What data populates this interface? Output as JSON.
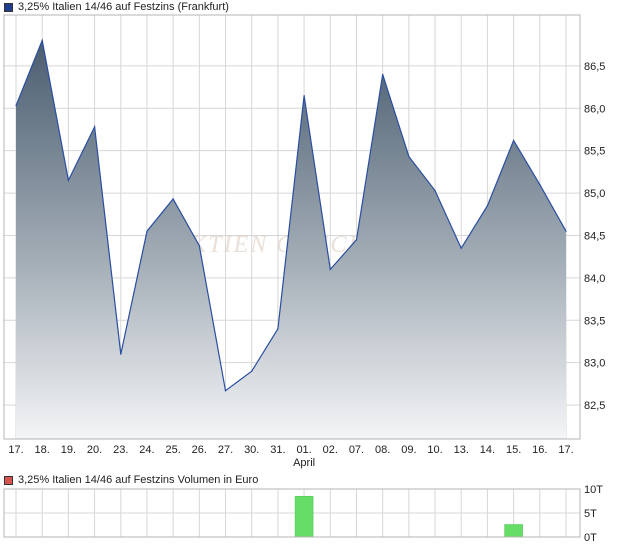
{
  "chart_data": [
    {
      "type": "area",
      "title": "3,25% Italien 14/46 auf Festzins (Frankfurt)",
      "legend_color": "#1f3d8a",
      "watermark": "AKTIEN CHECK",
      "categories": [
        "17.",
        "18.",
        "19.",
        "20.",
        "23.",
        "24.",
        "25.",
        "26.",
        "27.",
        "30.",
        "31.",
        "01.",
        "02.",
        "07.",
        "08.",
        "09.",
        "10.",
        "13.",
        "14.",
        "15.",
        "16.",
        "17."
      ],
      "month_label": {
        "text": "April",
        "at_index": 11
      },
      "values": [
        86.03,
        86.8,
        85.15,
        85.78,
        83.1,
        84.55,
        84.93,
        84.38,
        82.67,
        82.9,
        83.4,
        86.15,
        84.1,
        84.45,
        86.4,
        85.43,
        85.03,
        84.35,
        84.85,
        85.62,
        85.1,
        84.55
      ],
      "yticks": [
        "82,5",
        "83,0",
        "83,5",
        "84,0",
        "84,5",
        "85,0",
        "85,5",
        "86,0",
        "86,5"
      ],
      "ytick_values": [
        82.5,
        83.0,
        83.5,
        84.0,
        84.5,
        85.0,
        85.5,
        86.0,
        86.5
      ],
      "ylim": [
        82.1,
        87.1
      ],
      "grid": true,
      "colors": {
        "line": "#2a4ea0",
        "fill_top": "#4a5d70",
        "fill_bottom": "#f4f5f7",
        "grid": "#d7d7d7",
        "frame": "#b5b5b5"
      }
    },
    {
      "type": "bar",
      "title": "3,25% Italien 14/46 auf Festzins Volumen in Euro",
      "legend_color": "#d9534f",
      "categories": [
        "17.",
        "18.",
        "19.",
        "20.",
        "23.",
        "24.",
        "25.",
        "26.",
        "27.",
        "30.",
        "31.",
        "01.",
        "02.",
        "07.",
        "08.",
        "09.",
        "10.",
        "13.",
        "14.",
        "15.",
        "16.",
        "17."
      ],
      "values": [
        0,
        0,
        0,
        0,
        0,
        0,
        0,
        0,
        0,
        0,
        0,
        8.5,
        0,
        0,
        0,
        0,
        0,
        0,
        0,
        2.6,
        0,
        0
      ],
      "yticks": [
        "0T",
        "5T",
        "10T"
      ],
      "ytick_values": [
        0,
        5,
        10
      ],
      "ylim": [
        0,
        10
      ],
      "grid": true,
      "colors": {
        "bar": "#66dd66",
        "bar_edge": "#4cbf4c",
        "grid": "#d7d7d7",
        "frame": "#b5b5b5"
      }
    }
  ]
}
